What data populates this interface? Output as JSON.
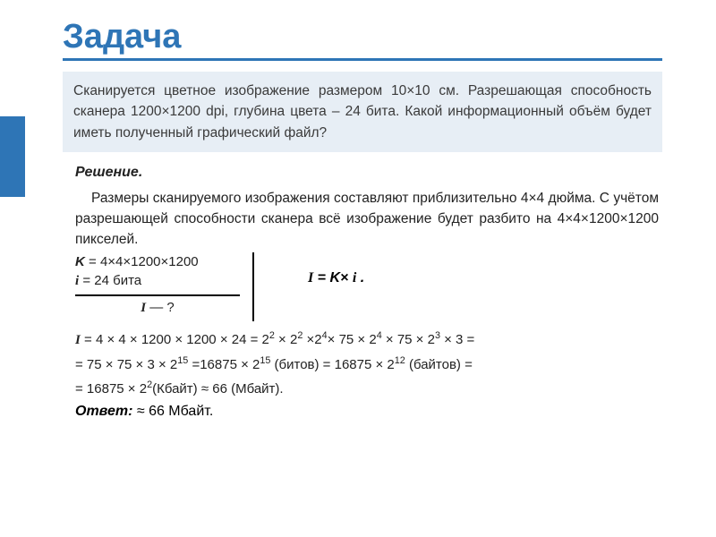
{
  "title": "Задача",
  "accent_color": "#2e75b6",
  "problem_bg": "#e7eef5",
  "problem_text": "Сканируется цветное изображение размером 10×10 см. Разрешающая способность сканера 1200×1200 dpi, глубина цвета – 24 бита. Какой информационный объём будет иметь полученный графический файл?",
  "solution_heading": "Решение.",
  "solution_text": "Размеры сканируемого изображения составляют приблизительно 4×4 дюйма. С учётом разрешающей способности сканера всё изображение будет разбито на 4×4×1200×1200 пикселей.",
  "given": {
    "k_label": "K",
    "k_value": "= 4×4×1200×1200",
    "i_label": "i",
    "i_value": "= 24 бита",
    "find_label": "I",
    "find_value": " — ?"
  },
  "formula": "I = K× i .",
  "calc_line1_prefix": "I",
  "calc_line1_rest": " = 4 × 4 × 1200 × 1200 × 24 = 2",
  "calc_line1_parts": {
    "a": "2",
    "b": " × 2",
    "c": "2",
    "d": " ×2",
    "e": "4",
    "f": "× 75 × 2",
    "g": "4",
    "h": " × 75 × 2",
    "i": "3",
    "j": " × 3 ="
  },
  "calc_line2_parts": {
    "a": "= 75 × 75 × 3 × 2",
    "b": "15",
    "c": " =16875 × 2",
    "d": "15",
    "e": " (битов) = 16875 × 2",
    "f": "12",
    "g": " (байтов) ="
  },
  "calc_line3_parts": {
    "a": "= 16875 × 2",
    "b": "2",
    "c": "(Кбайт) ≈ 66 (Мбайт)."
  },
  "answer_label": "Ответ:",
  "answer_value": " ≈ 66 Мбайт."
}
